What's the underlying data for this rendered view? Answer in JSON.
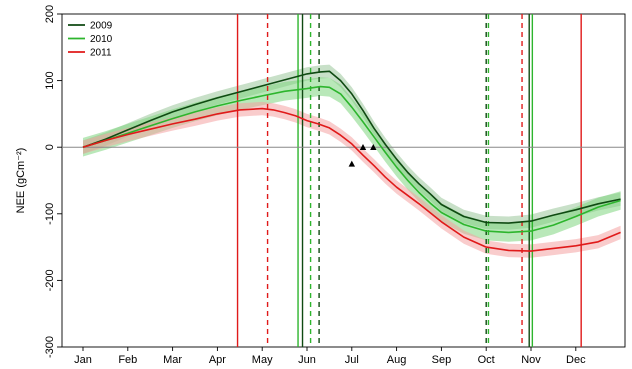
{
  "chart_data": {
    "type": "line",
    "title": "",
    "xlabel": "",
    "ylabel": "NEE (gCm⁻²)",
    "xlim": [
      0,
      12
    ],
    "ylim": [
      -300,
      200
    ],
    "grid": false,
    "legend_position": "top-left",
    "x_ticks": [
      {
        "label": "Jan",
        "x": 0
      },
      {
        "label": "Feb",
        "x": 1
      },
      {
        "label": "Mar",
        "x": 2
      },
      {
        "label": "Apr",
        "x": 3
      },
      {
        "label": "May",
        "x": 4
      },
      {
        "label": "Jun",
        "x": 5
      },
      {
        "label": "Jul",
        "x": 6
      },
      {
        "label": "Aug",
        "x": 7
      },
      {
        "label": "Sep",
        "x": 8
      },
      {
        "label": "Oct",
        "x": 9
      },
      {
        "label": "Nov",
        "x": 10
      },
      {
        "label": "Dec",
        "x": 11
      }
    ],
    "y_ticks": [
      {
        "label": "200",
        "y": 200
      },
      {
        "label": "100",
        "y": 100
      },
      {
        "label": "0",
        "y": 0
      },
      {
        "label": "-100",
        "y": -100
      },
      {
        "label": "-200",
        "y": -200
      },
      {
        "label": "-300",
        "y": -300
      }
    ],
    "zero_line": 0,
    "series": [
      {
        "name": "2009",
        "color": "#0f4a12",
        "band_color": "#9bc79b",
        "band_width": 10,
        "x": [
          0,
          0.5,
          1,
          1.5,
          2,
          2.5,
          3,
          3.5,
          4,
          4.5,
          5,
          5.3,
          5.5,
          5.75,
          6,
          6.25,
          6.5,
          6.75,
          7,
          7.25,
          7.5,
          7.75,
          8,
          8.5,
          9,
          9.5,
          10,
          10.5,
          11,
          11.5,
          12
        ],
        "y": [
          0,
          12,
          26,
          40,
          53,
          64,
          74,
          83,
          92,
          101,
          110,
          113,
          114,
          100,
          80,
          55,
          28,
          4,
          -18,
          -38,
          -55,
          -70,
          -86,
          -104,
          -113,
          -114,
          -111,
          -102,
          -94,
          -85,
          -78
        ]
      },
      {
        "name": "2010",
        "color": "#2db52d",
        "band_color": "#7fd67f",
        "band_width": 14,
        "x": [
          0,
          0.5,
          1,
          1.5,
          2,
          2.5,
          3,
          3.5,
          4,
          4.5,
          5,
          5.3,
          5.5,
          5.75,
          6,
          6.25,
          6.5,
          6.75,
          7,
          7.25,
          7.5,
          7.75,
          8,
          8.5,
          9,
          9.5,
          10,
          10.5,
          11,
          11.5,
          12
        ],
        "y": [
          0,
          10,
          21,
          32,
          43,
          53,
          62,
          70,
          77,
          84,
          88,
          91,
          90,
          80,
          60,
          38,
          15,
          -8,
          -30,
          -50,
          -68,
          -84,
          -98,
          -116,
          -126,
          -128,
          -126,
          -117,
          -104,
          -90,
          -80
        ]
      },
      {
        "name": "2011",
        "color": "#e01a1a",
        "band_color": "#f4a3a3",
        "band_width": 10,
        "x": [
          0,
          0.5,
          1,
          1.5,
          2,
          2.5,
          3,
          3.5,
          4,
          4.25,
          4.5,
          4.75,
          5,
          5.25,
          5.5,
          5.75,
          6,
          6.25,
          6.5,
          6.75,
          7,
          7.5,
          8,
          8.5,
          9,
          9.5,
          10,
          10.5,
          11,
          11.5,
          12
        ],
        "y": [
          0,
          10,
          19,
          27,
          35,
          42,
          50,
          56,
          58,
          56,
          52,
          47,
          40,
          35,
          29,
          18,
          5,
          -12,
          -28,
          -45,
          -60,
          -85,
          -112,
          -135,
          -150,
          -155,
          -156,
          -152,
          -148,
          -142,
          -128
        ]
      }
    ],
    "vertical_lines": [
      {
        "series": "2011",
        "x": 3.45,
        "style": "solid"
      },
      {
        "series": "2011",
        "x": 4.12,
        "style": "dashed"
      },
      {
        "series": "2011",
        "x": 9.8,
        "style": "dashed"
      },
      {
        "series": "2011",
        "x": 11.12,
        "style": "solid"
      },
      {
        "series": "2010",
        "x": 4.8,
        "style": "solid"
      },
      {
        "series": "2010",
        "x": 5.08,
        "style": "dashed"
      },
      {
        "series": "2010",
        "x": 9.05,
        "style": "dashed"
      },
      {
        "series": "2010",
        "x": 10.03,
        "style": "solid"
      },
      {
        "series": "2009",
        "x": 4.9,
        "style": "solid"
      },
      {
        "series": "2009",
        "x": 5.27,
        "style": "dashed"
      },
      {
        "series": "2009",
        "x": 9.0,
        "style": "dashed"
      },
      {
        "series": "2009",
        "x": 9.96,
        "style": "solid"
      }
    ],
    "triangle_markers": [
      {
        "x": 6.0,
        "y": -25
      },
      {
        "x": 6.25,
        "y": 0
      },
      {
        "x": 6.48,
        "y": 0
      }
    ]
  }
}
